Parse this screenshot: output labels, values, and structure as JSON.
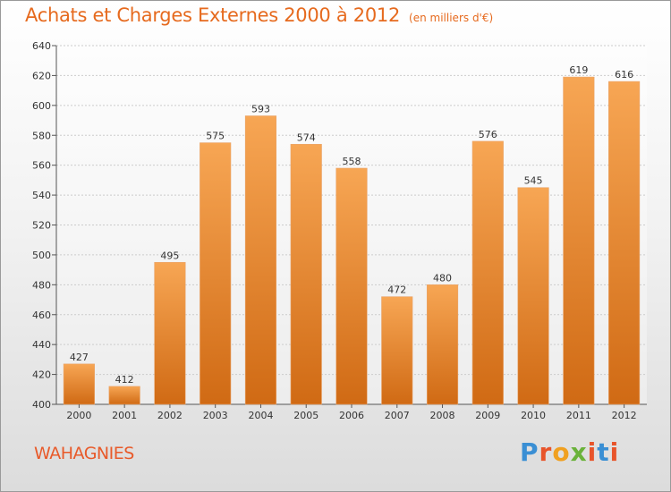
{
  "title": "Achats et Charges Externes 2000 à 2012",
  "subtitle": "(en milliers d'€)",
  "commune": "WAHAGNIES",
  "logo": {
    "text": "Proxiti",
    "letter_colors": [
      "#3a8fd4",
      "#e8542a",
      "#f0a020",
      "#6ab23a",
      "#e8542a",
      "#3a8fd4",
      "#e8542a"
    ]
  },
  "colors": {
    "bar_top": "#f7a654",
    "bar_bottom": "#d06a14",
    "grid": "#cccccc"
  },
  "chart_data": {
    "type": "bar",
    "categories": [
      "2000",
      "2001",
      "2002",
      "2003",
      "2004",
      "2005",
      "2006",
      "2007",
      "2008",
      "2009",
      "2010",
      "2011",
      "2012"
    ],
    "values": [
      427,
      412,
      495,
      575,
      593,
      574,
      558,
      472,
      480,
      576,
      545,
      619,
      616
    ],
    "ylim": [
      400,
      640
    ],
    "yticks": [
      400,
      420,
      440,
      460,
      480,
      500,
      520,
      540,
      560,
      580,
      600,
      620,
      640
    ],
    "grid": true,
    "data_labels": true
  }
}
